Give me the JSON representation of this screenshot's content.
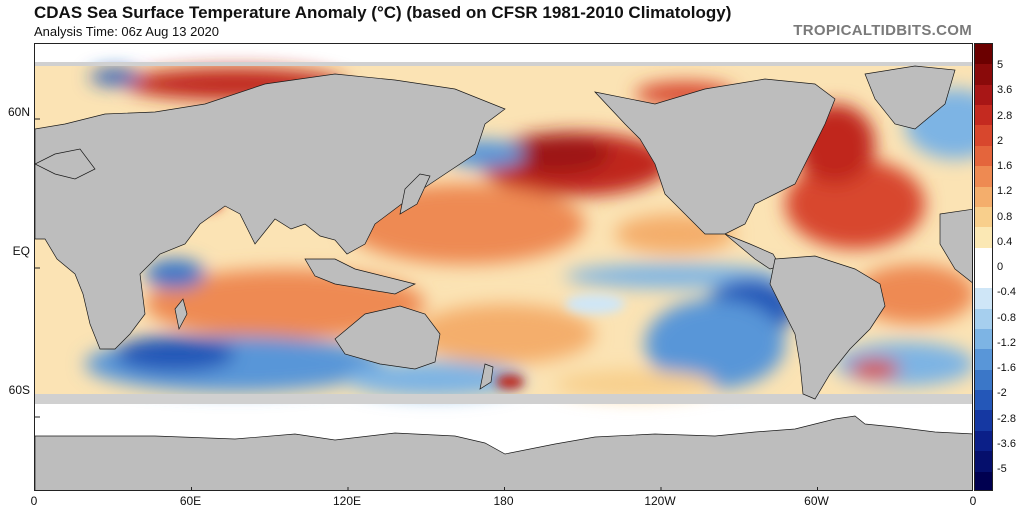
{
  "header": {
    "title": "CDAS Sea Surface Temperature Anomaly (°C) (based on CFSR 1981-2010 Climatology)",
    "subtitle": "Analysis Time: 06z Aug 13 2020",
    "brand": "TROPICALTIDBITS.COM"
  },
  "map": {
    "projection": "equirectangular",
    "center_longitude": 180,
    "longitude_range": [
      0,
      360
    ],
    "latitude_range": [
      -85,
      85
    ],
    "land_color": "#bdbdbd",
    "sea_ice_color": "#d0d0d0",
    "border_color": "#1a1a1a",
    "lat_labels": [
      {
        "label": "60N",
        "lat": 60
      },
      {
        "label": "EQ",
        "lat": 0
      },
      {
        "label": "60S",
        "lat": -60
      }
    ],
    "lon_labels": [
      {
        "label": "0",
        "lon": 0
      },
      {
        "label": "60E",
        "lon": 60
      },
      {
        "label": "120E",
        "lon": 120
      },
      {
        "label": "180",
        "lon": 180
      },
      {
        "label": "120W",
        "lon": 240
      },
      {
        "label": "60W",
        "lon": 300
      },
      {
        "label": "0",
        "lon": 360
      }
    ]
  },
  "colorbar": {
    "units": "°C",
    "ticks": [
      "5",
      "3.6",
      "2.8",
      "2",
      "1.6",
      "1.2",
      "0.8",
      "0.4",
      "0",
      "-0.4",
      "-0.8",
      "-1.2",
      "-1.6",
      "-2",
      "-2.8",
      "-3.6",
      "-5"
    ],
    "colors": [
      "#6b0000",
      "#8a0a0a",
      "#a81616",
      "#c42a20",
      "#d8472d",
      "#e4653c",
      "#ee8a52",
      "#f4ae6c",
      "#f8cf8c",
      "#fbe8b4",
      "#ffffff",
      "#ffffff",
      "#cfe6f7",
      "#a6cfee",
      "#7db4e4",
      "#5996d8",
      "#3b77c8",
      "#2457b8",
      "#1538a2",
      "#0b1f88",
      "#050f6c",
      "#000050"
    ]
  }
}
